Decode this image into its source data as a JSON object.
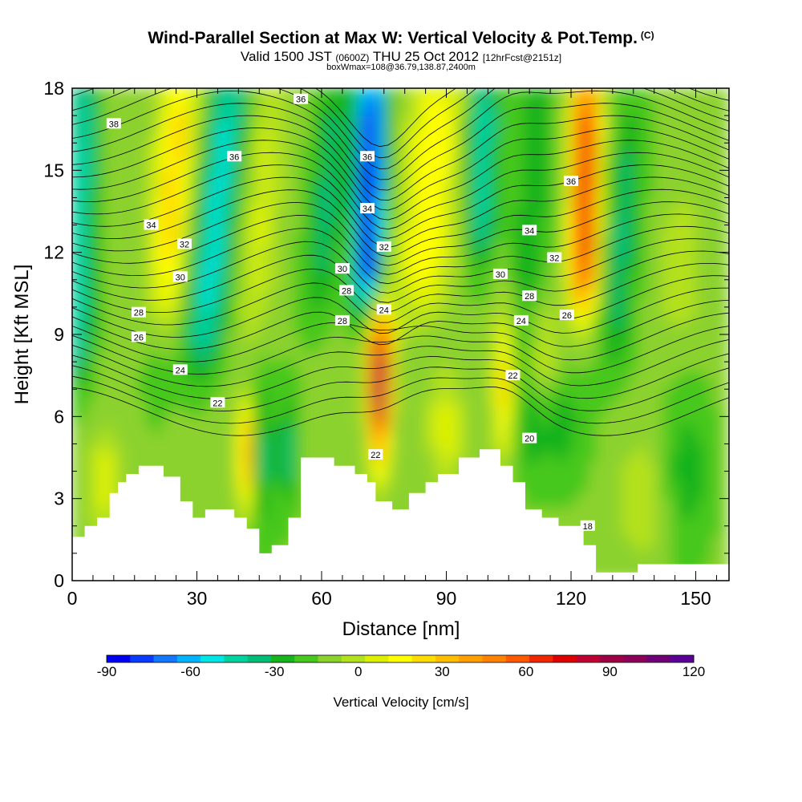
{
  "header": {
    "title": "Wind-Parallel Section at Max W: Vertical Velocity & Pot.Temp.",
    "title_mark": "(C)",
    "valid_prefix": "Valid 1500 JST",
    "valid_utc": "(0600Z)",
    "valid_date": "THU 25 Oct 2012",
    "forecast": "[12hrFcst@2151z]",
    "box_info": "boxWmax=108@36.79,138.87,2400m"
  },
  "chart_data": {
    "type": "heatmap",
    "xlabel": "Distance [nm]",
    "ylabel": "Height [Kft MSL]",
    "xlim": [
      0,
      158
    ],
    "ylim": [
      0,
      18
    ],
    "x_ticks": [
      0,
      30,
      60,
      90,
      120,
      150
    ],
    "y_ticks": [
      0,
      3,
      6,
      9,
      12,
      15,
      18
    ],
    "colorbar": {
      "label": "Vertical Velocity [cm/s]",
      "range": [
        -90,
        120
      ],
      "step": 10,
      "tick_labels": [
        "-90",
        "-60",
        "-30",
        "0",
        "30",
        "60",
        "90",
        "120"
      ],
      "colors": [
        "#0000f0",
        "#0a3cff",
        "#1478ff",
        "#00b4ff",
        "#00e6e6",
        "#00d2a0",
        "#00be78",
        "#18b41e",
        "#46c81e",
        "#8cd22d",
        "#b4e11e",
        "#dcf000",
        "#ffff00",
        "#ffdc00",
        "#ffbe00",
        "#ffa000",
        "#ff8200",
        "#ff5a00",
        "#f02800",
        "#dc0000",
        "#be0032",
        "#a00046",
        "#8c005a",
        "#700078",
        "#5a0096"
      ]
    },
    "terrain_profile": [
      [
        0,
        1.6
      ],
      [
        3,
        1.6
      ],
      [
        3,
        2
      ],
      [
        6,
        2
      ],
      [
        6,
        2.3
      ],
      [
        9,
        2.3
      ],
      [
        9,
        3.2
      ],
      [
        11,
        3.2
      ],
      [
        11,
        3.6
      ],
      [
        13,
        3.6
      ],
      [
        13,
        3.9
      ],
      [
        16,
        3.9
      ],
      [
        16,
        4.2
      ],
      [
        22,
        4.2
      ],
      [
        22,
        3.8
      ],
      [
        26,
        3.8
      ],
      [
        26,
        2.9
      ],
      [
        29,
        2.9
      ],
      [
        29,
        2.3
      ],
      [
        32,
        2.3
      ],
      [
        32,
        2.6
      ],
      [
        39,
        2.6
      ],
      [
        39,
        2.3
      ],
      [
        42,
        2.3
      ],
      [
        42,
        1.9
      ],
      [
        45,
        1.9
      ],
      [
        45,
        1.6
      ],
      [
        45,
        1
      ],
      [
        48,
        1
      ],
      [
        48,
        1.3
      ],
      [
        52,
        1.3
      ],
      [
        52,
        2.3
      ],
      [
        55,
        2.3
      ],
      [
        55,
        4.5
      ],
      [
        63,
        4.5
      ],
      [
        63,
        4.2
      ],
      [
        68,
        4.2
      ],
      [
        68,
        3.9
      ],
      [
        71,
        3.9
      ],
      [
        71,
        3.6
      ],
      [
        73,
        3.6
      ],
      [
        73,
        2.9
      ],
      [
        77,
        2.9
      ],
      [
        77,
        2.6
      ],
      [
        81,
        2.6
      ],
      [
        81,
        3.2
      ],
      [
        85,
        3.2
      ],
      [
        85,
        3.6
      ],
      [
        88,
        3.6
      ],
      [
        88,
        3.9
      ],
      [
        93,
        3.9
      ],
      [
        93,
        4.5
      ],
      [
        98,
        4.5
      ],
      [
        98,
        4.8
      ],
      [
        103,
        4.8
      ],
      [
        103,
        4.2
      ],
      [
        106,
        4.2
      ],
      [
        106,
        3.6
      ],
      [
        109,
        3.6
      ],
      [
        109,
        2.6
      ],
      [
        113,
        2.6
      ],
      [
        113,
        2.3
      ],
      [
        117,
        2.3
      ],
      [
        117,
        2
      ],
      [
        123,
        2
      ],
      [
        123,
        1.3
      ],
      [
        126,
        1.3
      ],
      [
        126,
        0.3
      ],
      [
        136,
        0.3
      ],
      [
        136,
        0.6
      ],
      [
        158,
        0.6
      ]
    ],
    "theta_contour_labels": [
      "38",
      "36",
      "36",
      "36",
      "34",
      "34",
      "34",
      "36",
      "32",
      "32",
      "32",
      "30",
      "30",
      "30",
      "28",
      "28",
      "28",
      "26",
      "26",
      "28",
      "24",
      "24",
      "24",
      "22",
      "22",
      "22",
      "20",
      "18"
    ]
  }
}
